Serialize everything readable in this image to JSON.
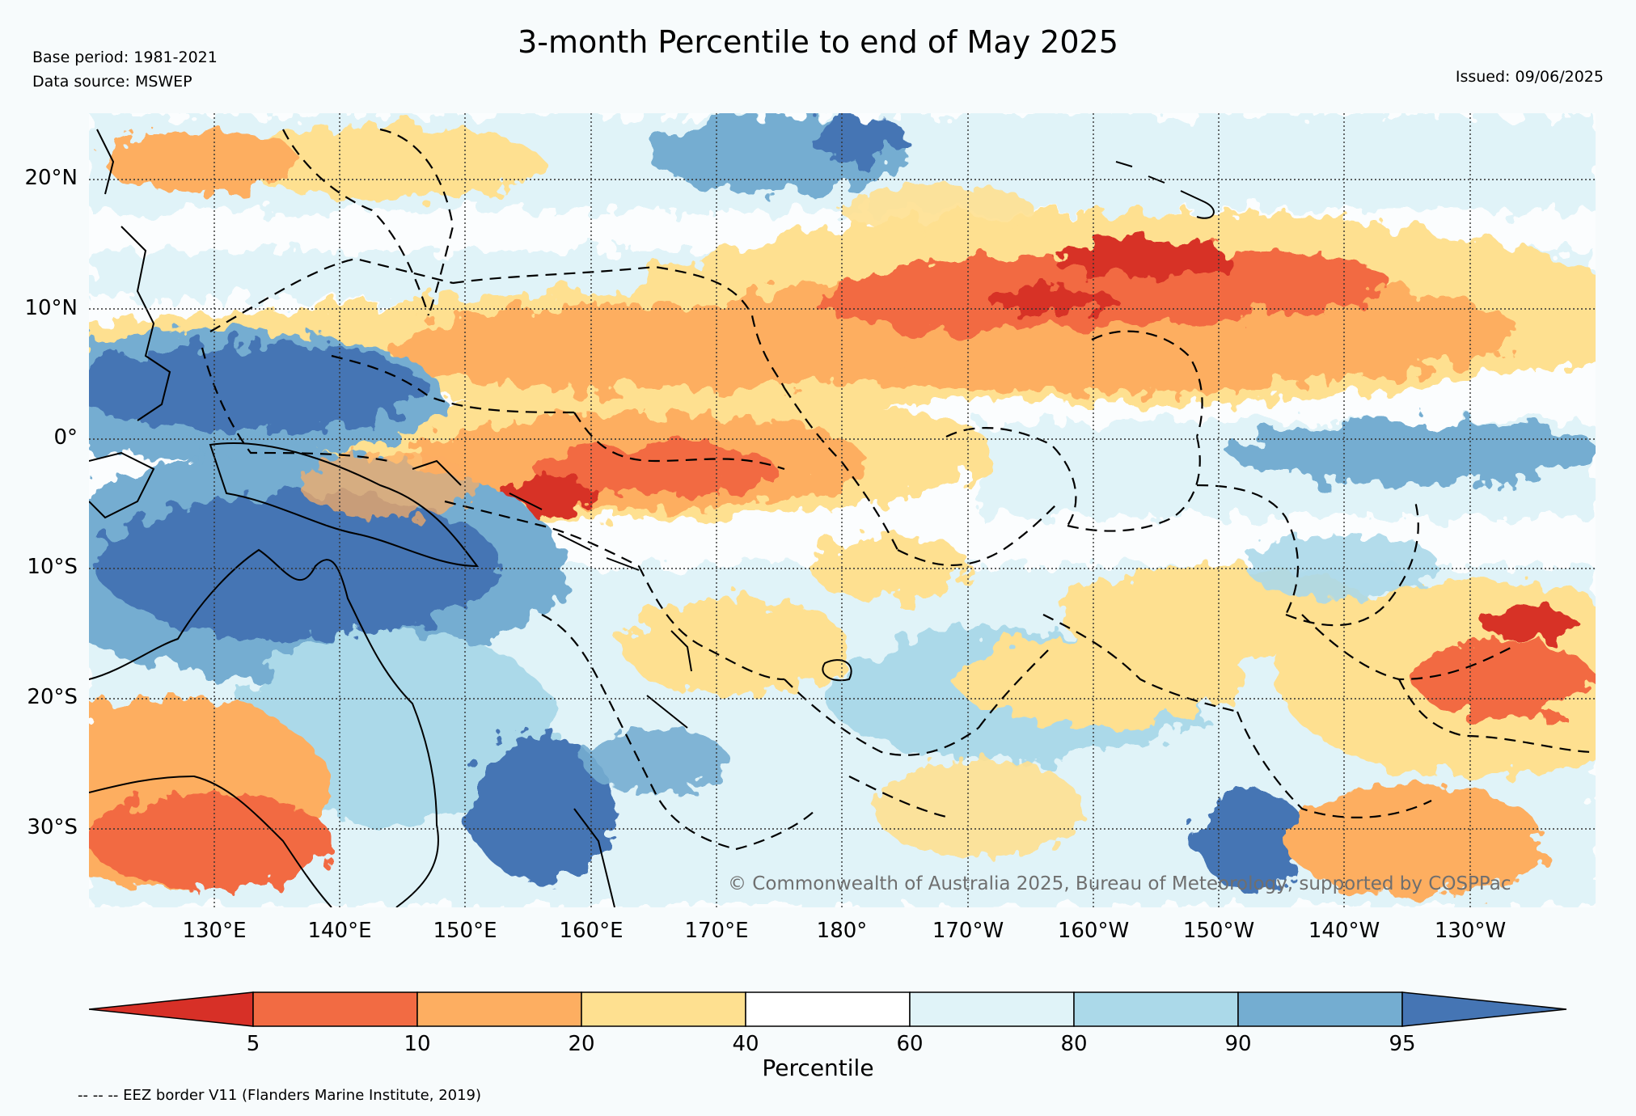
{
  "header": {
    "title": "3-month Percentile to end of May 2025",
    "base_period": "Base period: 1981-2021",
    "data_source": "Data source: MSWEP",
    "issued": "Issued: 09/06/2025"
  },
  "map": {
    "lon_range": [
      120,
      240
    ],
    "lat_range": [
      -36,
      25
    ],
    "lat_ticks": [
      {
        "value": 20,
        "label": "20°N"
      },
      {
        "value": 10,
        "label": "10°N"
      },
      {
        "value": 0,
        "label": "0°"
      },
      {
        "value": -10,
        "label": "10°S"
      },
      {
        "value": -20,
        "label": "20°S"
      },
      {
        "value": -30,
        "label": "30°S"
      }
    ],
    "lon_ticks": [
      {
        "value": 130,
        "label": "130°E"
      },
      {
        "value": 140,
        "label": "140°E"
      },
      {
        "value": 150,
        "label": "150°E"
      },
      {
        "value": 160,
        "label": "160°E"
      },
      {
        "value": 170,
        "label": "170°E"
      },
      {
        "value": 180,
        "label": "180°"
      },
      {
        "value": 190,
        "label": "170°W"
      },
      {
        "value": 200,
        "label": "160°W"
      },
      {
        "value": 210,
        "label": "150°W"
      },
      {
        "value": 220,
        "label": "140°W"
      },
      {
        "value": 230,
        "label": "130°W"
      }
    ],
    "credit": "© Commonwealth of Australia 2025, Bureau of Meteorology, supported by COSPPac",
    "background_color": "#fbfdfe"
  },
  "colorbar": {
    "label": "Percentile",
    "boundaries": [
      "5",
      "10",
      "20",
      "40",
      "60",
      "80",
      "90",
      "95"
    ],
    "colors": [
      "#d73027",
      "#f26b43",
      "#fdae61",
      "#fee090",
      "#ffffff",
      "#e0f3f8",
      "#abd9e9",
      "#74add1",
      "#4575b4"
    ]
  },
  "footer": {
    "eez_note": "-- -- -- EEZ border V11 (Flanders Marine Institute, 2019)"
  }
}
